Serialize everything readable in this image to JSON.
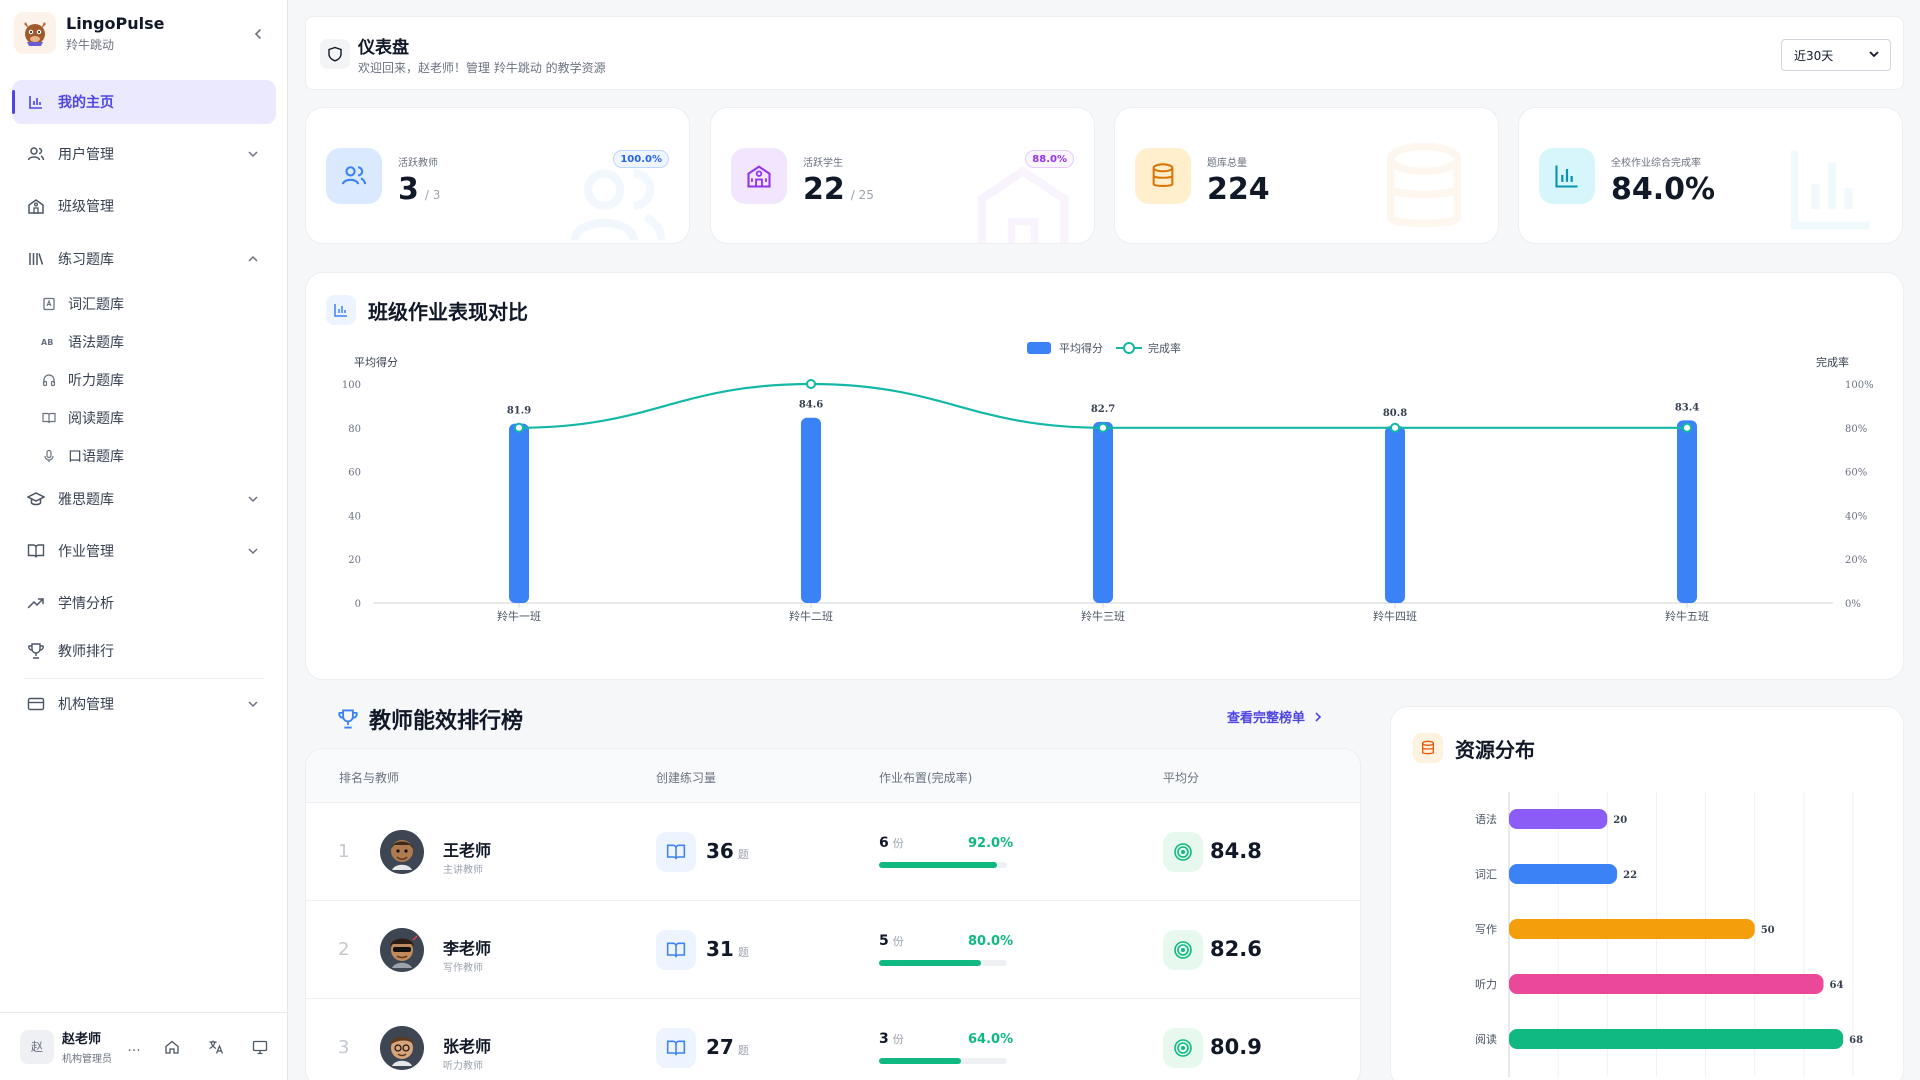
{
  "brand": {
    "name": "LingoPulse",
    "subtitle": "羚牛跳动"
  },
  "nav": {
    "home": "我的主页",
    "users": "用户管理",
    "classes": "班级管理",
    "practice": "练习题库",
    "practice_sub": [
      "词汇题库",
      "语法题库",
      "听力题库",
      "阅读题库",
      "口语题库"
    ],
    "ielts": "雅思题库",
    "homework": "作业管理",
    "analytics": "学情分析",
    "ranking": "教师排行",
    "org": "机构管理"
  },
  "user": {
    "avatar_text": "赵",
    "name": "赵老师",
    "role": "机构管理员",
    "more": "..."
  },
  "header": {
    "title": "仪表盘",
    "subtitle": "欢迎回来，赵老师！管理 羚牛跳动 的教学资源",
    "range": "近30天"
  },
  "stats": [
    {
      "label": "活跃教师",
      "value": "3",
      "total": "/ 3",
      "badge": "100.0%",
      "color": "#3b82f6",
      "bg": "#e0ecff"
    },
    {
      "label": "活跃学生",
      "value": "22",
      "total": "/ 25",
      "badge": "88.0%",
      "color": "#9333ea",
      "bg": "#f1e6ff"
    },
    {
      "label": "题库总量",
      "value": "224",
      "total": "",
      "badge": "",
      "color": "#d97706",
      "bg": "#fff1d6"
    },
    {
      "label": "全校作业综合完成率",
      "value": "84.0%",
      "total": "",
      "badge": "",
      "color": "#0891b2",
      "bg": "#ddf6fb"
    }
  ],
  "class_chart": {
    "title": "班级作业表现对比",
    "legend_score": "平均得分",
    "legend_rate": "完成率",
    "y_left_label": "平均得分",
    "y_right_label": "完成率"
  },
  "ranking": {
    "title": "教师能效排行榜",
    "view_all": "查看完整榜单",
    "headers": [
      "排名与教师",
      "创建练习量",
      "作业布置(完成率)",
      "平均分"
    ],
    "exercise_unit": "题",
    "homework_unit": "份",
    "rows": [
      {
        "rank": "1",
        "name": "王老师",
        "role": "主讲教师",
        "exercises": "36",
        "homework": "6",
        "rate": "92.0%",
        "rate_value": 0.92,
        "score": "84.8"
      },
      {
        "rank": "2",
        "name": "李老师",
        "role": "写作教师",
        "exercises": "31",
        "homework": "5",
        "rate": "80.0%",
        "rate_value": 0.8,
        "score": "82.6"
      },
      {
        "rank": "3",
        "name": "张老师",
        "role": "听力教师",
        "exercises": "27",
        "homework": "3",
        "rate": "64.0%",
        "rate_value": 0.64,
        "score": "80.9"
      }
    ]
  },
  "resource": {
    "title": "资源分布"
  },
  "chart_data": [
    {
      "type": "bar+line",
      "categories": [
        "羚牛一班",
        "羚牛二班",
        "羚牛三班",
        "羚牛四班",
        "羚牛五班"
      ],
      "series": [
        {
          "name": "平均得分",
          "type": "bar",
          "axis": "left",
          "values": [
            81.9,
            84.6,
            82.7,
            80.8,
            83.4
          ],
          "color": "#3b82f6"
        },
        {
          "name": "完成率",
          "type": "line",
          "axis": "right",
          "values": [
            80,
            100,
            80,
            80,
            80
          ],
          "color": "#14b8a6"
        }
      ],
      "ylabel": "平均得分",
      "ylabel_right": "完成率",
      "ylim": [
        0,
        100
      ],
      "yticks": [
        "0",
        "20",
        "40",
        "60",
        "80",
        "100"
      ],
      "yticks_right": [
        "0%",
        "20%",
        "40%",
        "60%",
        "80%",
        "100%"
      ],
      "legend": "top-center",
      "grid": false
    },
    {
      "type": "bar",
      "orientation": "horizontal",
      "categories": [
        "语法",
        "词汇",
        "写作",
        "听力",
        "阅读"
      ],
      "values": [
        20,
        22,
        50,
        64,
        68
      ],
      "colors": [
        "#8b5cf6",
        "#3b82f6",
        "#f59e0b",
        "#ec4899",
        "#10b981"
      ],
      "xlim": [
        0,
        70
      ],
      "xticks": [
        "0",
        "10",
        "20",
        "30",
        "40",
        "50",
        "60",
        "70"
      ],
      "grid": true
    }
  ]
}
